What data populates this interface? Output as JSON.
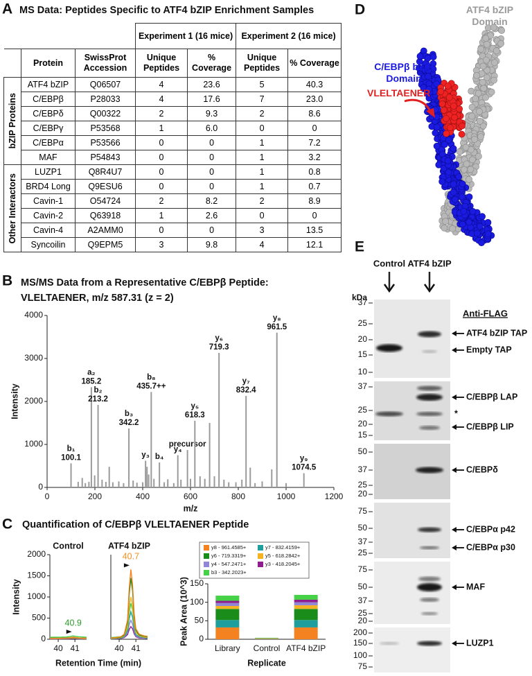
{
  "panel_a": {
    "label": "A",
    "title": "MS Data: Peptides Specific to ATF4 bZIP Enrichment Samples",
    "experiment_headers": [
      "Experiment 1 (16 mice)",
      "Experiment 2 (16 mice)"
    ],
    "columns": [
      "Protein",
      "SwissProt Accession",
      "Unique Peptides",
      "% Coverage",
      "Unique Peptides",
      "% Coverage"
    ],
    "groups": [
      {
        "name": "bZIP Proteins",
        "rows": [
          [
            "ATF4 bZIP",
            "Q06507",
            "4",
            "23.6",
            "5",
            "40.3"
          ],
          [
            "C/EBPβ",
            "P28033",
            "4",
            "17.6",
            "7",
            "23.0"
          ],
          [
            "C/EBPδ",
            "Q00322",
            "2",
            "9.3",
            "2",
            "8.6"
          ],
          [
            "C/EBPγ",
            "P53568",
            "1",
            "6.0",
            "0",
            "0"
          ],
          [
            "C/EBPα",
            "P53566",
            "0",
            "0",
            "1",
            "7.2"
          ],
          [
            "MAF",
            "P54843",
            "0",
            "0",
            "1",
            "3.2"
          ]
        ]
      },
      {
        "name": "Other Interactors",
        "rows": [
          [
            "LUZP1",
            "Q8R4U7",
            "0",
            "0",
            "1",
            "0.8"
          ],
          [
            "BRD4 Long",
            "Q9ESU6",
            "0",
            "0",
            "1",
            "0.7"
          ],
          [
            "Cavin-1",
            "O54724",
            "2",
            "8.2",
            "2",
            "8.9"
          ],
          [
            "Cavin-2",
            "Q63918",
            "1",
            "2.6",
            "0",
            "0"
          ],
          [
            "Cavin-4",
            "A2AMM0",
            "0",
            "0",
            "3",
            "13.5"
          ],
          [
            "Syncoilin",
            "Q9EPM5",
            "3",
            "9.8",
            "4",
            "12.1"
          ]
        ]
      }
    ]
  },
  "panel_b": {
    "label": "B",
    "title_lines": [
      "MS/MS Data from a Representative C/EBPβ Peptide:",
      "VLELTAENER, m/z 587.31 (z = 2)"
    ]
  },
  "panel_c": {
    "label": "C",
    "title": "Quantification of C/EBPβ VLELTAENER Peptide"
  },
  "panel_d": {
    "label": "D",
    "atf4_label": "ATF4 bZIP Domain",
    "cebpb_label": "C/EBPβ bZIP Domain",
    "peptide_label": "VLELTAENER"
  },
  "panel_e": {
    "label": "E",
    "lanes": [
      "Control",
      "ATF4 bZIP"
    ],
    "unit": "kDa",
    "antibody": "Anti-FLAG",
    "blots": [
      {
        "markers": [
          37,
          25,
          20,
          15,
          10
        ],
        "bands": [
          "ATF4 bZIP TAP",
          "Empty TAP"
        ]
      },
      {
        "markers": [
          37,
          25,
          20,
          15
        ],
        "bands": [
          "C/EBPβ LAP",
          "*",
          "C/EBPβ LIP"
        ]
      },
      {
        "markers": [
          50,
          37,
          25,
          20
        ],
        "bands": [
          "C/EBPδ"
        ]
      },
      {
        "markers": [
          75,
          50,
          37,
          25
        ],
        "bands": [
          "C/EBPα p42",
          "C/EBPα p30"
        ]
      },
      {
        "markers": [
          75,
          50,
          37,
          25,
          20
        ],
        "bands": [
          "MAF"
        ]
      },
      {
        "markers": [
          200,
          150,
          100,
          75
        ],
        "bands": [
          "LUZP1"
        ]
      }
    ]
  },
  "chart_data": [
    {
      "type": "bar",
      "xlabel": "m/z",
      "ylabel": "Intensity",
      "color": "#9a9a9a",
      "x": [
        100.1,
        130,
        147,
        160,
        175,
        185.2,
        199,
        213.2,
        230,
        246,
        260,
        275,
        300,
        320,
        342.2,
        360,
        376,
        400,
        412,
        418,
        425,
        435.7,
        447,
        470,
        490,
        505,
        530,
        547,
        560,
        587.3,
        600,
        618.3,
        640,
        660,
        680,
        700,
        719.3,
        740,
        760,
        790,
        815,
        832.4,
        850,
        870,
        900,
        940,
        961.5,
        1000,
        1074.5
      ],
      "values": [
        560,
        130,
        220,
        100,
        130,
        2330,
        280,
        1920,
        180,
        130,
        480,
        120,
        140,
        100,
        1370,
        160,
        110,
        120,
        620,
        480,
        300,
        2220,
        200,
        580,
        120,
        190,
        100,
        750,
        180,
        870,
        200,
        1550,
        260,
        200,
        1500,
        260,
        3130,
        180,
        120,
        120,
        180,
        2130,
        460,
        100,
        140,
        420,
        3600,
        100,
        330
      ],
      "ion_labels": [
        [
          "b₁",
          "100.1"
        ],
        null,
        null,
        null,
        null,
        [
          "a₂",
          "185.2"
        ],
        null,
        [
          "b₂",
          "213.2"
        ],
        null,
        null,
        null,
        null,
        null,
        null,
        [
          "b₃",
          "342.2"
        ],
        null,
        null,
        null,
        [
          "y₃"
        ],
        null,
        null,
        [
          "b₈",
          "435.7++"
        ],
        null,
        [
          "b₄"
        ],
        null,
        null,
        null,
        [
          "y₄"
        ],
        null,
        [
          "precursor"
        ],
        null,
        [
          "y₅",
          "618.3"
        ],
        null,
        null,
        null,
        null,
        [
          "y₆",
          "719.3"
        ],
        null,
        null,
        null,
        null,
        [
          "y₇",
          "832.4"
        ],
        null,
        null,
        null,
        null,
        [
          "y₈",
          "961.5"
        ],
        null,
        [
          "y₉",
          "1074.5"
        ]
      ],
      "xlim": [
        0,
        1200
      ],
      "xticks": [
        0,
        200,
        400,
        600,
        800,
        1000,
        1200
      ],
      "ylim": [
        0,
        4000
      ],
      "yticks": [
        0,
        1000,
        2000,
        3000,
        4000
      ]
    },
    {
      "type": "line",
      "title": "Control",
      "ylabel": "Intensity",
      "xlabel": "Retention Time (min)",
      "x": [
        39.5,
        39.8,
        40.1,
        40.3,
        40.5,
        40.6,
        40.7,
        40.8,
        40.9,
        41.0,
        41.2,
        41.5,
        41.7
      ],
      "series": [
        {
          "color": "#8e1e8e",
          "values": [
            10,
            12,
            10,
            14,
            12,
            15,
            16,
            18,
            20,
            18,
            14,
            12,
            10
          ]
        },
        {
          "color": "#8f86d6",
          "values": [
            15,
            14,
            16,
            18,
            17,
            20,
            22,
            25,
            28,
            24,
            18,
            16,
            14
          ]
        },
        {
          "color": "#1f9e9e",
          "values": [
            20,
            22,
            20,
            24,
            26,
            28,
            30,
            34,
            38,
            32,
            26,
            22,
            20
          ]
        },
        {
          "color": "#46d246",
          "values": [
            45,
            50,
            48,
            52,
            55,
            60,
            65,
            72,
            80,
            70,
            60,
            52,
            48
          ]
        },
        {
          "color": "#f5b324",
          "values": [
            18,
            20,
            18,
            22,
            24,
            26,
            28,
            30,
            34,
            30,
            24,
            20,
            18
          ]
        },
        {
          "color": "#1a8c1a",
          "values": [
            25,
            28,
            26,
            30,
            32,
            35,
            38,
            42,
            48,
            40,
            32,
            28,
            25
          ]
        },
        {
          "color": "#f58220",
          "values": [
            22,
            25,
            24,
            28,
            30,
            34,
            38,
            44,
            52,
            44,
            34,
            28,
            24
          ]
        }
      ],
      "peak_label": 40.9,
      "peak_label_color": "#2a9d2a",
      "xlim": [
        39.5,
        41.7
      ],
      "xticks": [
        40,
        41
      ],
      "ylim": [
        0,
        2000
      ],
      "yticks": [
        0,
        500,
        1000,
        1500,
        2000
      ]
    },
    {
      "type": "line",
      "title": "ATF4 bZIP",
      "x": [
        39.5,
        39.8,
        40.1,
        40.3,
        40.5,
        40.6,
        40.7,
        40.8,
        40.9,
        41.0,
        41.2,
        41.5,
        41.7
      ],
      "series": [
        {
          "color": "#8e1e8e",
          "values": [
            10,
            15,
            20,
            40,
            110,
            230,
            300,
            250,
            130,
            60,
            30,
            25,
            20
          ]
        },
        {
          "color": "#8f86d6",
          "values": [
            10,
            15,
            25,
            50,
            150,
            340,
            450,
            360,
            180,
            80,
            40,
            30,
            20
          ]
        },
        {
          "color": "#1f9e9e",
          "values": [
            15,
            20,
            30,
            60,
            200,
            480,
            650,
            520,
            260,
            110,
            60,
            40,
            30
          ]
        },
        {
          "color": "#46d246",
          "values": [
            40,
            50,
            60,
            90,
            250,
            620,
            850,
            700,
            350,
            170,
            100,
            80,
            70
          ]
        },
        {
          "color": "#f5b324",
          "values": [
            20,
            25,
            40,
            80,
            300,
            750,
            1000,
            800,
            380,
            160,
            80,
            50,
            40
          ]
        },
        {
          "color": "#1a8c1a",
          "values": [
            25,
            35,
            50,
            100,
            400,
            1050,
            1450,
            1150,
            520,
            220,
            100,
            70,
            50
          ]
        },
        {
          "color": "#f58220",
          "values": [
            30,
            40,
            60,
            120,
            450,
            1200,
            1650,
            1300,
            600,
            250,
            120,
            80,
            60
          ]
        }
      ],
      "peak_label": 40.7,
      "peak_label_color": "#f0901e",
      "xlim": [
        39.5,
        41.7
      ],
      "xticks": [
        40,
        41
      ],
      "ylim": [
        0,
        2000
      ]
    },
    {
      "type": "bar",
      "stacked": true,
      "legend": "top",
      "xlabel": "Replicate",
      "ylabel": "Peak Area (10^3)",
      "categories": [
        "Library",
        "Control",
        "ATF4 bZIP"
      ],
      "series": [
        {
          "name": "y8 - 961.4585+",
          "color": "#f58220",
          "values": [
            32,
            1,
            32
          ]
        },
        {
          "name": "y7 - 832.4159+",
          "color": "#1f9e9e",
          "values": [
            20,
            0.5,
            20
          ]
        },
        {
          "name": "y6 - 719.3319+",
          "color": "#1a8c1a",
          "values": [
            30,
            1,
            30
          ]
        },
        {
          "name": "y5 - 618.2842+",
          "color": "#f5b324",
          "values": [
            8,
            0.3,
            10
          ]
        },
        {
          "name": "y4 - 547.2471+",
          "color": "#8f86d6",
          "values": [
            8,
            0.2,
            8
          ]
        },
        {
          "name": "y3 - 418.2045+",
          "color": "#8e1e8e",
          "values": [
            6,
            0.2,
            7
          ]
        },
        {
          "name": "b3 - 342.2023+",
          "color": "#46d246",
          "values": [
            14,
            0.8,
            13
          ]
        }
      ],
      "ylim": [
        0,
        150
      ],
      "yticks": [
        0,
        50,
        100,
        150
      ]
    }
  ]
}
